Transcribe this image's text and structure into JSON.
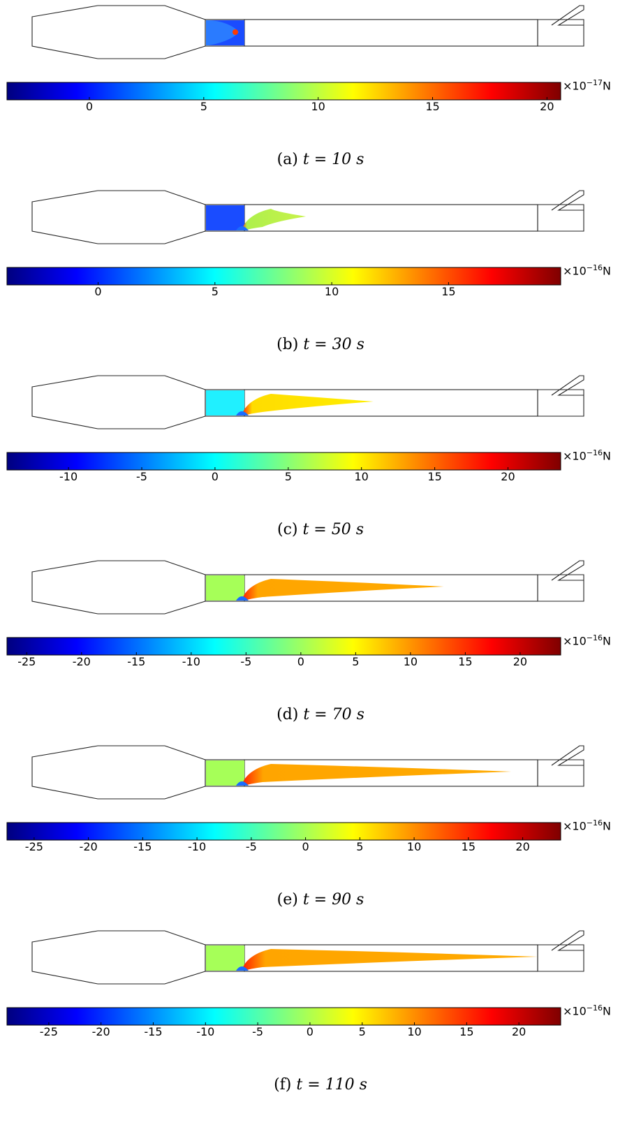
{
  "panels": [
    {
      "caption_label": "(a)",
      "caption_eq": "t = 10 s",
      "colorbar": {
        "multiplier": "×10",
        "exponent": "−17",
        "unit": "N",
        "min": -3.6,
        "max": 20.6,
        "ticks": [
          "0",
          "5",
          "10",
          "15",
          "20"
        ],
        "tick_values": [
          0,
          5,
          10,
          15,
          20
        ]
      },
      "plume": {
        "length_fraction": 0.08,
        "base_color": "#ffa500",
        "tip_color": "#ff6a00",
        "left_color": "#1a4cff"
      }
    },
    {
      "caption_label": "(b)",
      "caption_eq": "t = 30 s",
      "colorbar": {
        "multiplier": "×10",
        "exponent": "−16",
        "unit": "N",
        "min": -3.9,
        "max": 19.8,
        "ticks": [
          "0",
          "5",
          "10",
          "15"
        ],
        "tick_values": [
          0,
          5,
          10,
          15
        ]
      },
      "plume": {
        "length_fraction": 0.21,
        "base_color": "#aef04c",
        "tip_color": "#c8f24a",
        "left_color": "#1a4cff"
      }
    },
    {
      "caption_label": "(c)",
      "caption_eq": "t = 50 s",
      "colorbar": {
        "multiplier": "×10",
        "exponent": "−16",
        "unit": "N",
        "min": -14.2,
        "max": 23.6,
        "ticks": [
          "-10",
          "-5",
          "0",
          "5",
          "10",
          "15",
          "20"
        ],
        "tick_values": [
          -10,
          -5,
          0,
          5,
          10,
          15,
          20
        ]
      },
      "plume": {
        "length_fraction": 0.44,
        "base_color": "#ffdc00",
        "tip_color": "#ffee00",
        "left_color": "#20f0ff"
      }
    },
    {
      "caption_label": "(d)",
      "caption_eq": "t = 70 s",
      "colorbar": {
        "multiplier": "×10",
        "exponent": "−16",
        "unit": "N",
        "min": -26.8,
        "max": 23.7,
        "ticks": [
          "-25",
          "-20",
          "-15",
          "-10",
          "-5",
          "0",
          "5",
          "10",
          "15",
          "20"
        ],
        "tick_values": [
          -25,
          -20,
          -15,
          -10,
          -5,
          0,
          5,
          10,
          15,
          20
        ]
      },
      "plume": {
        "length_fraction": 0.68,
        "base_color": "#ffa500",
        "tip_color": "#ffaa00",
        "left_color": "#a6ff58"
      }
    },
    {
      "caption_label": "(e)",
      "caption_eq": "t = 90 s",
      "colorbar": {
        "multiplier": "×10",
        "exponent": "−16",
        "unit": "N",
        "min": -27.5,
        "max": 23.5,
        "ticks": [
          "-25",
          "-20",
          "-15",
          "-10",
          "-5",
          "0",
          "5",
          "10",
          "15",
          "20"
        ],
        "tick_values": [
          -25,
          -20,
          -15,
          -10,
          -5,
          0,
          5,
          10,
          15,
          20
        ]
      },
      "plume": {
        "length_fraction": 0.91,
        "base_color": "#ffa500",
        "tip_color": "#ffaa00",
        "left_color": "#a6ff58"
      }
    },
    {
      "caption_label": "(f)",
      "caption_eq": "t = 110 s",
      "colorbar": {
        "multiplier": "×10",
        "exponent": "−16",
        "unit": "N",
        "min": -29.0,
        "max": 24.0,
        "ticks": [
          "-25",
          "-20",
          "-15",
          "-10",
          "-5",
          "0",
          "5",
          "10",
          "15",
          "20"
        ],
        "tick_values": [
          -25,
          -20,
          -15,
          -10,
          -5,
          0,
          5,
          10,
          15,
          20
        ]
      },
      "plume": {
        "length_fraction": 1.0,
        "base_color": "#ffa500",
        "tip_color": "#ffaa00",
        "left_color": "#a6ff58"
      }
    }
  ],
  "colormap": [
    "#00007f",
    "#0000ff",
    "#007fff",
    "#00ffff",
    "#7fff7f",
    "#ffff00",
    "#ff7f00",
    "#ff0000",
    "#7f0000"
  ]
}
